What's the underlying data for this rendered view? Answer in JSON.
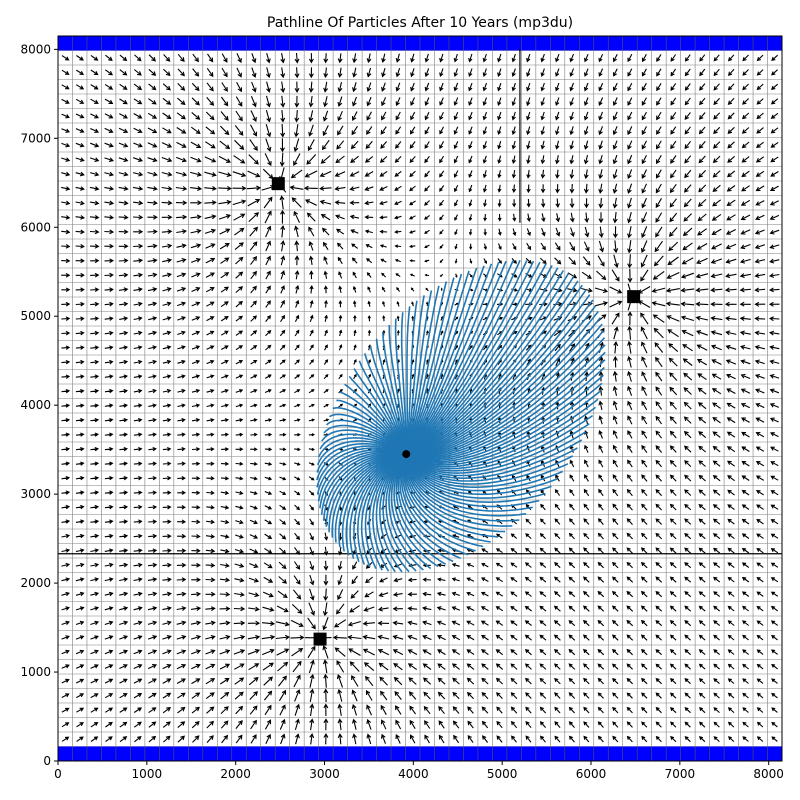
{
  "chart_data": {
    "type": "quiver",
    "title": "Pathline Of Particles After 10 Years (mp3du)",
    "xlabel": "",
    "ylabel": "",
    "xlim": [
      0,
      8150
    ],
    "ylim": [
      0,
      8150
    ],
    "x_ticks": [
      0,
      1000,
      2000,
      3000,
      4000,
      5000,
      6000,
      7000,
      8000
    ],
    "y_ticks": [
      0,
      1000,
      2000,
      3000,
      4000,
      5000,
      6000,
      7000,
      8000
    ],
    "grid": {
      "cell_size": 163,
      "cells": 50,
      "color": "#808080"
    },
    "constant_head_boundaries": [
      {
        "side": "top",
        "y_range": [
          7987,
          8150
        ],
        "x_range": [
          0,
          8150
        ],
        "color": "#0000ff"
      },
      {
        "side": "bottom",
        "y_range": [
          0,
          163
        ],
        "x_range": [
          0,
          8150
        ],
        "color": "#0000ff"
      }
    ],
    "wells": [
      {
        "x": 2480,
        "y": 6490
      },
      {
        "x": 6480,
        "y": 5220
      },
      {
        "x": 2950,
        "y": 1370
      }
    ],
    "release_point": {
      "x": 3920,
      "y": 3450
    },
    "barrier_lines": [
      {
        "x1": 0,
        "y1": 2330,
        "x2": 8150,
        "y2": 2330
      },
      {
        "x1": 5200,
        "y1": 6050,
        "x2": 5200,
        "y2": 8000
      }
    ],
    "pathline_color": "#1f77b4",
    "pathline_count": 120
  }
}
